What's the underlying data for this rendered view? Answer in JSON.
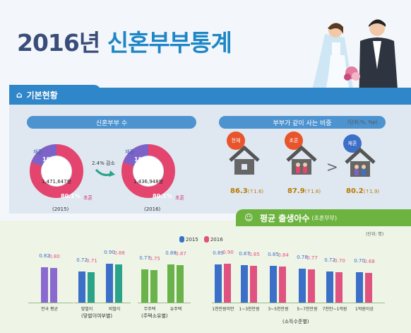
{
  "title": {
    "year": "2016년",
    "text": "신혼부부통계"
  },
  "section1": {
    "header": "기본현황"
  },
  "newlyweds": {
    "pill": "신혼부부 수",
    "rings": [
      {
        "year": "(2015)",
        "count": "1,471,647쌍",
        "remarried_pct": "19.9%",
        "first_pct": "80.1%",
        "remarried_label": "재혼",
        "first_label": "초혼",
        "first_fraction": 0.801
      },
      {
        "year": "(2016)",
        "count": "1,436,948쌍",
        "remarried_pct": "19.8%",
        "first_pct": "80.1%",
        "remarried_label": "재혼",
        "first_label": "초혼",
        "first_fraction": 0.801
      }
    ],
    "change": "2.4% 감소"
  },
  "living_together": {
    "pill": "부부가 같이 사는 비중",
    "unit": "(단위:%, %p)",
    "items": [
      {
        "label": "전체",
        "value": "86.3",
        "delta": "(↑1.6)",
        "color": "#e8542b"
      },
      {
        "label": "초혼",
        "value": "87.9",
        "delta": "(↑1.6)",
        "color": "#e8542b"
      },
      {
        "label": "재혼",
        "value": "80.2",
        "delta": "(↑1.9)",
        "color": "#3b6fc8"
      }
    ]
  },
  "section2": {
    "header": "평균 출생아수",
    "sub": "(초혼부부)",
    "unit": "(단위: 명)"
  },
  "legend": {
    "y2015": "2015",
    "y2016": "2016"
  },
  "colors": {
    "c2015": "#8b6ad0",
    "c2016": "#e05380",
    "c2016_mid": "#2ba38a",
    "c2016_right": "#e05380"
  },
  "chart_data": {
    "type": "bar",
    "ylabel": "",
    "series": [
      {
        "name": "2015",
        "values": [
          0.82,
          0.72,
          0.9,
          0.77,
          0.88,
          0.89,
          0.87,
          0.85,
          0.78,
          0.72,
          0.7
        ]
      },
      {
        "name": "2016",
        "values": [
          0.8,
          0.71,
          0.88,
          0.75,
          0.87,
          0.9,
          0.85,
          0.84,
          0.77,
          0.7,
          0.68
        ]
      }
    ],
    "categories": [
      "전국 평균",
      "맞벌이",
      "외벌이",
      "무주택",
      "유주택",
      "1천만원미만",
      "1~3천만원",
      "3~5천만원",
      "5~7천만원",
      "7천만~1억원",
      "1억원이상"
    ],
    "groups": [
      "(맞벌이여부별)",
      "(주택소유별)",
      "(소득수준별)"
    ]
  }
}
